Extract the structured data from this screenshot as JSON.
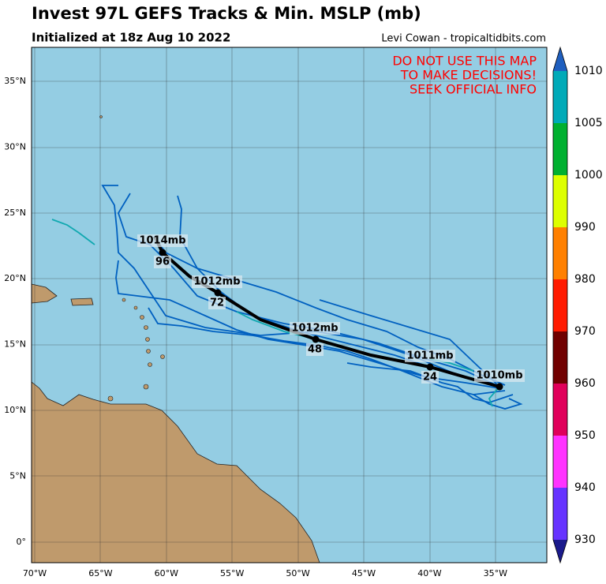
{
  "header": {
    "title": "Invest 97L GEFS Tracks & Min. MSLP (mb)",
    "subtitle": "Initialized at 18z Aug 10 2022",
    "credit": "Levi Cowan - tropicaltidbits.com"
  },
  "warning": [
    "DO NOT USE THIS MAP",
    "TO MAKE DECISIONS!",
    "SEEK OFFICIAL INFO"
  ],
  "lat_labels": [
    "35°N",
    "30°N",
    "25°N",
    "20°N",
    "15°N",
    "10°N",
    "5°N",
    "0°"
  ],
  "lon_labels": [
    "70°W",
    "65°W",
    "60°W",
    "55°W",
    "50°W",
    "45°W",
    "40°W",
    "35°W"
  ],
  "colorbar_labels": [
    "1010",
    "1005",
    "1000",
    "990",
    "980",
    "970",
    "960",
    "950",
    "940",
    "930"
  ],
  "pressure_labels": [
    "1010mb",
    "1011mb",
    "1012mb",
    "1012mb",
    "1014mb"
  ],
  "hour_labels": [
    "24",
    "48",
    "72",
    "96"
  ]
}
